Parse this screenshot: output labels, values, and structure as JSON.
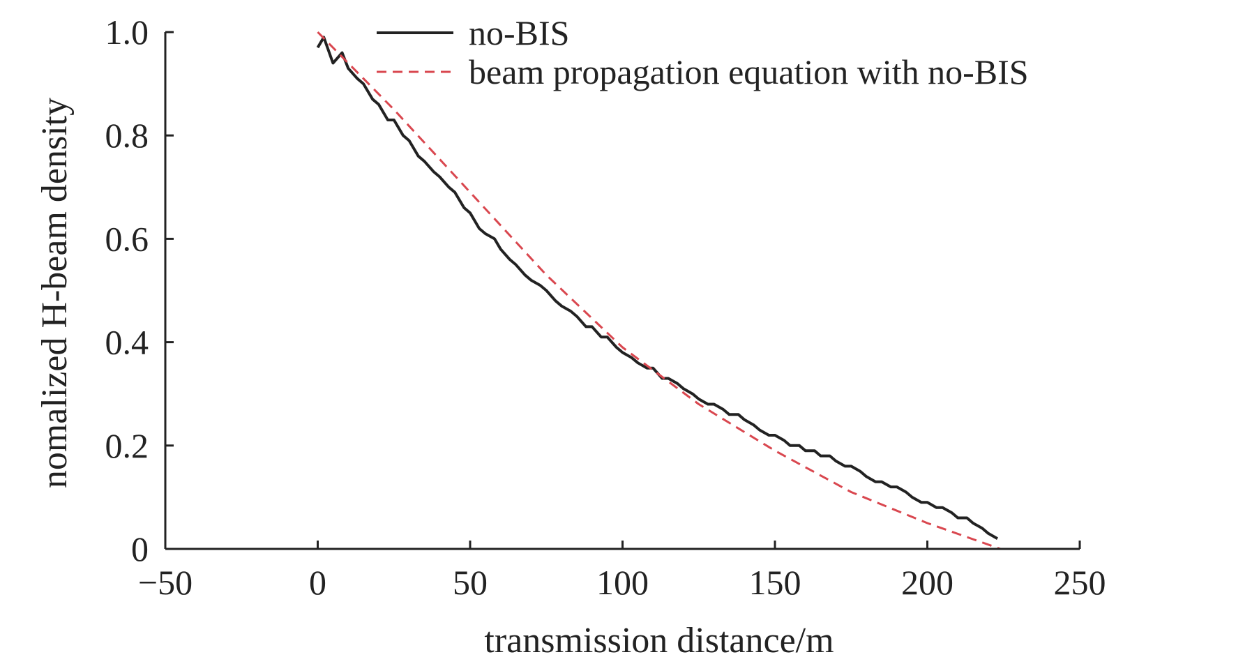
{
  "chart_data": {
    "type": "line",
    "title": "",
    "xlabel": "transmission distance/m",
    "ylabel": "nomalized H-beam density",
    "xlim": [
      -50,
      250
    ],
    "ylim": [
      0,
      1.0
    ],
    "xticks": [
      -50,
      0,
      50,
      100,
      150,
      200,
      250
    ],
    "xtick_labels": [
      "−50",
      "0",
      "50",
      "100",
      "150",
      "200",
      "250"
    ],
    "yticks": [
      0,
      0.2,
      0.4,
      0.6,
      0.8,
      1.0
    ],
    "ytick_labels": [
      "0",
      "0.2",
      "0.4",
      "0.6",
      "0.8",
      "1.0"
    ],
    "grid": false,
    "legend_position": "top",
    "series": [
      {
        "name": "no-BIS",
        "style": "solid",
        "color": "#222222",
        "x": [
          0,
          2,
          5,
          8,
          10,
          13,
          15,
          18,
          20,
          23,
          25,
          28,
          30,
          33,
          35,
          38,
          40,
          43,
          45,
          48,
          50,
          53,
          55,
          58,
          60,
          63,
          65,
          68,
          70,
          73,
          75,
          78,
          80,
          83,
          85,
          88,
          90,
          93,
          95,
          98,
          100,
          103,
          105,
          108,
          110,
          113,
          115,
          118,
          120,
          123,
          125,
          128,
          130,
          133,
          135,
          138,
          140,
          143,
          145,
          148,
          150,
          153,
          155,
          158,
          160,
          163,
          165,
          168,
          170,
          173,
          175,
          178,
          180,
          183,
          185,
          188,
          190,
          193,
          195,
          198,
          200,
          203,
          205,
          208,
          210,
          213,
          215,
          218,
          220,
          223
        ],
        "y": [
          0.97,
          0.99,
          0.94,
          0.96,
          0.93,
          0.91,
          0.9,
          0.87,
          0.86,
          0.83,
          0.83,
          0.8,
          0.79,
          0.76,
          0.75,
          0.73,
          0.72,
          0.7,
          0.69,
          0.66,
          0.65,
          0.62,
          0.61,
          0.6,
          0.58,
          0.56,
          0.55,
          0.53,
          0.52,
          0.51,
          0.5,
          0.48,
          0.47,
          0.46,
          0.45,
          0.43,
          0.43,
          0.41,
          0.41,
          0.39,
          0.38,
          0.37,
          0.36,
          0.35,
          0.35,
          0.33,
          0.33,
          0.32,
          0.31,
          0.3,
          0.29,
          0.28,
          0.28,
          0.27,
          0.26,
          0.26,
          0.25,
          0.24,
          0.23,
          0.22,
          0.22,
          0.21,
          0.2,
          0.2,
          0.19,
          0.19,
          0.18,
          0.18,
          0.17,
          0.16,
          0.16,
          0.15,
          0.14,
          0.13,
          0.13,
          0.12,
          0.12,
          0.11,
          0.1,
          0.09,
          0.09,
          0.08,
          0.08,
          0.07,
          0.06,
          0.06,
          0.05,
          0.04,
          0.03,
          0.02
        ]
      },
      {
        "name": "beam propagation equation with no-BIS",
        "style": "dashed",
        "color": "#d9474f",
        "x": [
          0,
          25,
          50,
          75,
          100,
          125,
          150,
          175,
          200,
          224
        ],
        "y": [
          1.0,
          0.85,
          0.69,
          0.53,
          0.39,
          0.28,
          0.19,
          0.11,
          0.05,
          0.0
        ]
      }
    ]
  }
}
